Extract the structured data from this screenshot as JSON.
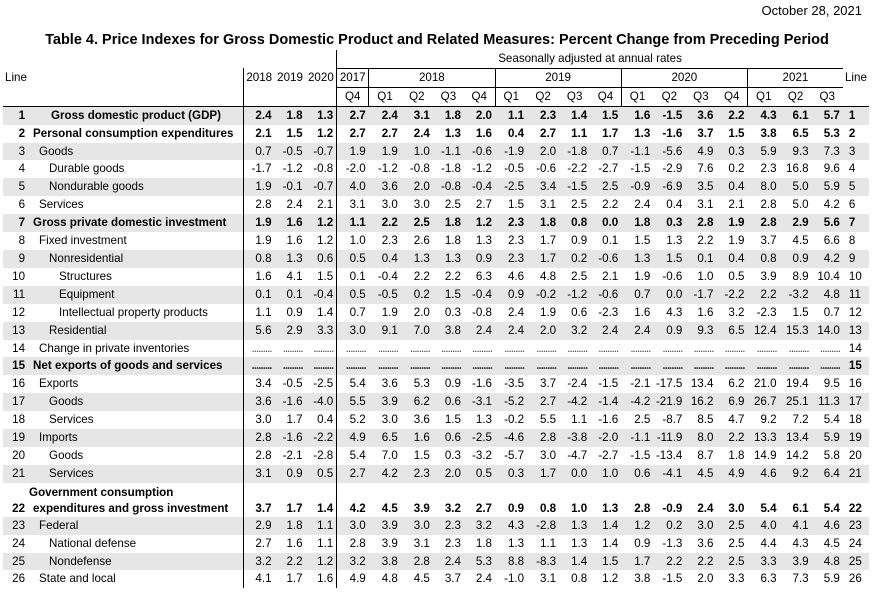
{
  "header": {
    "date": "October 28, 2021",
    "title": "Table 4. Price Indexes for Gross Domestic Product and Related Measures: Percent Change from Preceding Period",
    "seasonal_note": "Seasonally adjusted at annual rates",
    "line_label": "Line",
    "annual_years": [
      "2018",
      "2019",
      "2020"
    ],
    "year_groups": [
      "2017",
      "2018",
      "2019",
      "2020",
      "2021"
    ],
    "quarters": [
      "Q4",
      "Q1",
      "Q2",
      "Q3",
      "Q4",
      "Q1",
      "Q2",
      "Q3",
      "Q4",
      "Q1",
      "Q2",
      "Q3",
      "Q4",
      "Q1",
      "Q2",
      "Q3"
    ]
  },
  "rows": [
    {
      "line": "1",
      "label": "Gross domestic product (GDP)",
      "indent": "center",
      "bold": true,
      "shade": true,
      "values": [
        "2.4",
        "1.8",
        "1.3",
        "2.7",
        "2.4",
        "3.1",
        "1.8",
        "2.0",
        "1.1",
        "2.3",
        "1.4",
        "1.5",
        "1.6",
        "-1.5",
        "3.6",
        "2.2",
        "4.3",
        "6.1",
        "5.7"
      ]
    },
    {
      "line": "2",
      "label": "Personal consumption expenditures",
      "indent": 0,
      "bold": true,
      "shade": false,
      "values": [
        "2.1",
        "1.5",
        "1.2",
        "2.7",
        "2.7",
        "2.4",
        "1.3",
        "1.6",
        "0.4",
        "2.7",
        "1.1",
        "1.7",
        "1.3",
        "-1.6",
        "3.7",
        "1.5",
        "3.8",
        "6.5",
        "5.3"
      ]
    },
    {
      "line": "3",
      "label": "Goods",
      "indent": 1,
      "bold": false,
      "shade": true,
      "values": [
        "0.7",
        "-0.5",
        "-0.7",
        "1.9",
        "1.9",
        "1.0",
        "-1.1",
        "-0.6",
        "-1.9",
        "2.0",
        "-1.8",
        "0.7",
        "-1.1",
        "-5.6",
        "4.9",
        "0.3",
        "5.9",
        "9.3",
        "7.3"
      ]
    },
    {
      "line": "4",
      "label": "Durable goods",
      "indent": 2,
      "bold": false,
      "shade": false,
      "values": [
        "-1.7",
        "-1.2",
        "-0.8",
        "-2.0",
        "-1.2",
        "-0.8",
        "-1.8",
        "-1.2",
        "-0.5",
        "-0.6",
        "-2.2",
        "-2.7",
        "-1.5",
        "-2.9",
        "7.6",
        "0.2",
        "2.3",
        "16.8",
        "9.6"
      ]
    },
    {
      "line": "5",
      "label": "Nondurable goods",
      "indent": 2,
      "bold": false,
      "shade": true,
      "values": [
        "1.9",
        "-0.1",
        "-0.7",
        "4.0",
        "3.6",
        "2.0",
        "-0.8",
        "-0.4",
        "-2.5",
        "3.4",
        "-1.5",
        "2.5",
        "-0.9",
        "-6.9",
        "3.5",
        "0.4",
        "8.0",
        "5.0",
        "5.9"
      ]
    },
    {
      "line": "6",
      "label": "Services",
      "indent": 1,
      "bold": false,
      "shade": false,
      "values": [
        "2.8",
        "2.4",
        "2.1",
        "3.1",
        "3.0",
        "3.0",
        "2.5",
        "2.7",
        "1.5",
        "3.1",
        "2.5",
        "2.2",
        "2.4",
        "0.4",
        "3.1",
        "2.1",
        "2.8",
        "5.0",
        "4.2"
      ]
    },
    {
      "line": "7",
      "label": "Gross private domestic investment",
      "indent": 0,
      "bold": true,
      "shade": true,
      "values": [
        "1.9",
        "1.6",
        "1.2",
        "1.1",
        "2.2",
        "2.5",
        "1.8",
        "1.2",
        "2.3",
        "1.8",
        "0.8",
        "0.0",
        "1.8",
        "0.3",
        "2.8",
        "1.9",
        "2.8",
        "2.9",
        "5.6"
      ]
    },
    {
      "line": "8",
      "label": "Fixed investment",
      "indent": 1,
      "bold": false,
      "shade": false,
      "values": [
        "1.9",
        "1.6",
        "1.2",
        "1.0",
        "2.3",
        "2.6",
        "1.8",
        "1.3",
        "2.3",
        "1.7",
        "0.9",
        "0.1",
        "1.5",
        "1.3",
        "2.2",
        "1.9",
        "3.7",
        "4.5",
        "6.6"
      ]
    },
    {
      "line": "9",
      "label": "Nonresidential",
      "indent": 2,
      "bold": false,
      "shade": true,
      "values": [
        "0.8",
        "1.3",
        "0.6",
        "0.5",
        "0.4",
        "1.3",
        "1.3",
        "0.9",
        "2.3",
        "1.7",
        "0.2",
        "-0.6",
        "1.3",
        "1.5",
        "0.1",
        "0.4",
        "0.8",
        "0.9",
        "4.2"
      ]
    },
    {
      "line": "10",
      "label": "Structures",
      "indent": 3,
      "bold": false,
      "shade": false,
      "values": [
        "1.6",
        "4.1",
        "1.5",
        "0.1",
        "-0.4",
        "2.2",
        "2.2",
        "6.3",
        "4.6",
        "4.8",
        "2.5",
        "2.1",
        "1.9",
        "-0.6",
        "1.0",
        "0.5",
        "3.9",
        "8.9",
        "10.4"
      ]
    },
    {
      "line": "11",
      "label": "Equipment",
      "indent": 3,
      "bold": false,
      "shade": true,
      "values": [
        "0.1",
        "0.1",
        "-0.4",
        "0.5",
        "-0.5",
        "0.2",
        "1.5",
        "-0.4",
        "0.9",
        "-0.2",
        "-1.2",
        "-0.6",
        "0.7",
        "0.0",
        "-1.7",
        "-2.2",
        "2.2",
        "-3.2",
        "4.8"
      ]
    },
    {
      "line": "12",
      "label": "Intellectual property products",
      "indent": 3,
      "bold": false,
      "shade": false,
      "values": [
        "1.1",
        "0.9",
        "1.4",
        "0.7",
        "1.9",
        "2.0",
        "0.3",
        "-0.8",
        "2.4",
        "1.9",
        "0.6",
        "-2.3",
        "1.6",
        "4.3",
        "1.6",
        "3.2",
        "-2.3",
        "1.5",
        "0.7"
      ]
    },
    {
      "line": "13",
      "label": "Residential",
      "indent": 2,
      "bold": false,
      "shade": true,
      "values": [
        "5.6",
        "2.9",
        "3.3",
        "3.0",
        "9.1",
        "7.0",
        "3.8",
        "2.4",
        "2.4",
        "2.0",
        "3.2",
        "2.4",
        "2.4",
        "0.9",
        "9.3",
        "6.5",
        "12.4",
        "15.3",
        "14.0"
      ]
    },
    {
      "line": "14",
      "label": "Change in private inventories",
      "indent": 1,
      "bold": false,
      "shade": false,
      "dots": true,
      "values": []
    },
    {
      "line": "15",
      "label": "Net exports of goods and services",
      "indent": 0,
      "bold": true,
      "shade": true,
      "dots": true,
      "values": []
    },
    {
      "line": "16",
      "label": "Exports",
      "indent": 1,
      "bold": false,
      "shade": false,
      "values": [
        "3.4",
        "-0.5",
        "-2.5",
        "5.4",
        "3.6",
        "5.3",
        "0.9",
        "-1.6",
        "-3.5",
        "3.7",
        "-2.4",
        "-1.5",
        "-2.1",
        "-17.5",
        "13.4",
        "6.2",
        "21.0",
        "19.4",
        "9.5"
      ]
    },
    {
      "line": "17",
      "label": "Goods",
      "indent": 2,
      "bold": false,
      "shade": true,
      "values": [
        "3.6",
        "-1.6",
        "-4.0",
        "5.5",
        "3.9",
        "6.2",
        "0.6",
        "-3.1",
        "-5.2",
        "2.7",
        "-4.2",
        "-1.4",
        "-4.2",
        "-21.9",
        "16.2",
        "6.9",
        "26.7",
        "25.1",
        "11.3"
      ]
    },
    {
      "line": "18",
      "label": "Services",
      "indent": 2,
      "bold": false,
      "shade": false,
      "values": [
        "3.0",
        "1.7",
        "0.4",
        "5.2",
        "3.0",
        "3.6",
        "1.5",
        "1.3",
        "-0.2",
        "5.5",
        "1.1",
        "-1.6",
        "2.5",
        "-8.7",
        "8.5",
        "4.7",
        "9.2",
        "7.2",
        "5.4"
      ]
    },
    {
      "line": "19",
      "label": "Imports",
      "indent": 1,
      "bold": false,
      "shade": true,
      "values": [
        "2.8",
        "-1.6",
        "-2.2",
        "4.9",
        "6.5",
        "1.6",
        "0.6",
        "-2.5",
        "-4.6",
        "2.8",
        "-3.8",
        "-2.0",
        "-1.1",
        "-11.9",
        "8.0",
        "2.2",
        "13.3",
        "13.4",
        "5.9"
      ]
    },
    {
      "line": "20",
      "label": "Goods",
      "indent": 2,
      "bold": false,
      "shade": false,
      "values": [
        "2.8",
        "-2.1",
        "-2.8",
        "5.4",
        "7.0",
        "1.5",
        "0.3",
        "-3.2",
        "-5.7",
        "3.0",
        "-4.7",
        "-2.7",
        "-1.5",
        "-13.4",
        "8.7",
        "1.8",
        "14.9",
        "14.2",
        "5.8"
      ]
    },
    {
      "line": "21",
      "label": "Services",
      "indent": 2,
      "bold": false,
      "shade": true,
      "values": [
        "3.1",
        "0.9",
        "0.5",
        "2.7",
        "4.2",
        "2.3",
        "2.0",
        "0.5",
        "0.3",
        "1.7",
        "0.0",
        "1.0",
        "0.6",
        "-4.1",
        "4.5",
        "4.9",
        "4.6",
        "9.2",
        "6.4"
      ]
    },
    {
      "line": "22",
      "label": "Government consumption",
      "label2": "expenditures and gross investment",
      "indent": 0,
      "bold": true,
      "shade": false,
      "tall": true,
      "values": [
        "3.7",
        "1.7",
        "1.4",
        "4.2",
        "4.5",
        "3.9",
        "3.2",
        "2.7",
        "0.9",
        "0.8",
        "1.0",
        "1.3",
        "2.8",
        "-0.9",
        "2.4",
        "3.0",
        "5.4",
        "6.1",
        "5.4"
      ]
    },
    {
      "line": "23",
      "label": "Federal",
      "indent": 1,
      "bold": false,
      "shade": true,
      "values": [
        "2.9",
        "1.8",
        "1.1",
        "3.0",
        "3.9",
        "3.0",
        "2.3",
        "3.2",
        "4.3",
        "-2.8",
        "1.3",
        "1.4",
        "1.2",
        "0.2",
        "3.0",
        "2.5",
        "4.0",
        "4.1",
        "4.6"
      ]
    },
    {
      "line": "24",
      "label": "National defense",
      "indent": 2,
      "bold": false,
      "shade": false,
      "values": [
        "2.7",
        "1.6",
        "1.1",
        "2.8",
        "3.9",
        "3.1",
        "2.3",
        "1.8",
        "1.3",
        "1.1",
        "1.3",
        "1.4",
        "0.9",
        "-1.3",
        "3.6",
        "2.5",
        "4.4",
        "4.3",
        "4.5"
      ]
    },
    {
      "line": "25",
      "label": "Nondefense",
      "indent": 2,
      "bold": false,
      "shade": true,
      "values": [
        "3.2",
        "2.2",
        "1.2",
        "3.2",
        "3.8",
        "2.8",
        "2.4",
        "5.3",
        "8.8",
        "-8.3",
        "1.4",
        "1.5",
        "1.7",
        "2.2",
        "2.2",
        "2.5",
        "3.3",
        "3.9",
        "4.8"
      ]
    },
    {
      "line": "26",
      "label": "State and local",
      "indent": 1,
      "bold": false,
      "shade": false,
      "values": [
        "4.1",
        "1.7",
        "1.6",
        "4.9",
        "4.8",
        "4.5",
        "3.7",
        "2.4",
        "-1.0",
        "3.1",
        "0.8",
        "1.2",
        "3.8",
        "-1.5",
        "2.0",
        "3.3",
        "6.3",
        "7.3",
        "5.9"
      ]
    }
  ]
}
